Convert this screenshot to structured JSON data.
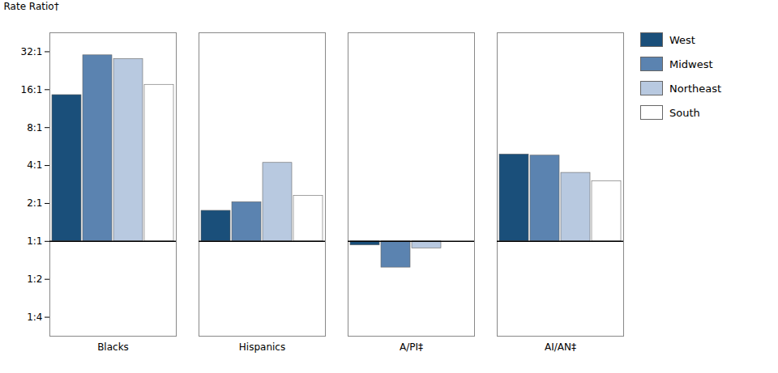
{
  "chart_data": {
    "type": "bar",
    "categories": [
      "Blacks",
      "Hispanics",
      "A/PI‡",
      "AI/AN‡"
    ],
    "series": [
      {
        "name": "West",
        "color": "#1a4f7a",
        "values": [
          14.5,
          1.75,
          0.93,
          4.9
        ]
      },
      {
        "name": "Midwest",
        "color": "#5b83b0",
        "values": [
          30.0,
          2.05,
          0.62,
          4.8
        ]
      },
      {
        "name": "Northeast",
        "color": "#b8c9e0",
        "values": [
          28.0,
          4.2,
          0.88,
          3.5
        ]
      },
      {
        "name": "South",
        "color": "#ffffff",
        "values": [
          17.5,
          2.3,
          1.0,
          3.0
        ]
      }
    ],
    "ylabel": "Rate Ratio†",
    "log": "y",
    "ylim": [
      0.17677669529663687,
      45.254833995939045
    ],
    "yticks": [
      {
        "value": 0.25,
        "label": "1:4"
      },
      {
        "value": 0.5,
        "label": "1:2"
      },
      {
        "value": 1,
        "label": "1:1"
      },
      {
        "value": 2,
        "label": "2:1"
      },
      {
        "value": 4,
        "label": "4:1"
      },
      {
        "value": 8,
        "label": "8:1"
      },
      {
        "value": 16,
        "label": "16:1"
      },
      {
        "value": 32,
        "label": "32:1"
      }
    ],
    "grid": false,
    "legend": "right"
  }
}
